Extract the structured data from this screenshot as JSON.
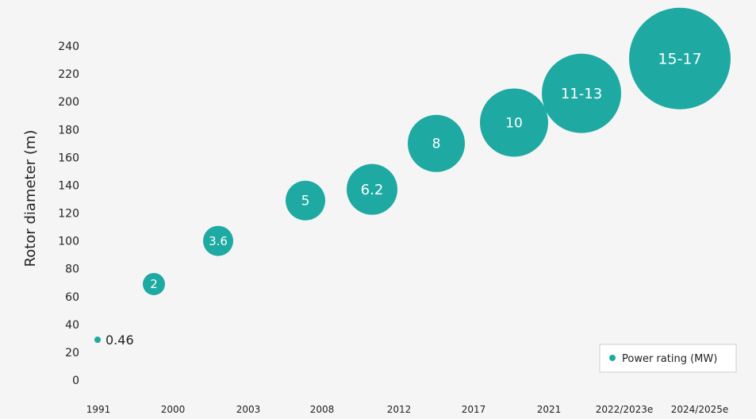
{
  "chart_data": {
    "type": "bubble",
    "ylabel": "Rotor diameter (m)",
    "ylim": [
      0,
      240
    ],
    "yticks": [
      0,
      20,
      40,
      60,
      80,
      100,
      120,
      140,
      160,
      180,
      200,
      220,
      240
    ],
    "categories": [
      "1991",
      "2000",
      "2003",
      "2008",
      "2012",
      "2017",
      "2021",
      "2022/2023e",
      "2024/2025e"
    ],
    "legend": {
      "label": "Power rating (MW)",
      "position": "bottom-right"
    },
    "bubble_color": "#1ea9a2",
    "points": [
      {
        "y": 29,
        "label": "0.46",
        "power_mw": 0.46
      },
      {
        "y": 69,
        "label": "2",
        "power_mw": 2
      },
      {
        "y": 100,
        "label": "3.6",
        "power_mw": 3.6
      },
      {
        "y": 129,
        "label": "5",
        "power_mw": 5
      },
      {
        "y": 137,
        "label": "6.2",
        "power_mw": 6.2
      },
      {
        "y": 170,
        "label": "8",
        "power_mw": 8
      },
      {
        "y": 185,
        "label": "10",
        "power_mw": 10
      },
      {
        "y": 206,
        "label": "11-13",
        "power_mw": 12
      },
      {
        "y": 231,
        "label": "15-17",
        "power_mw": 16
      }
    ]
  }
}
